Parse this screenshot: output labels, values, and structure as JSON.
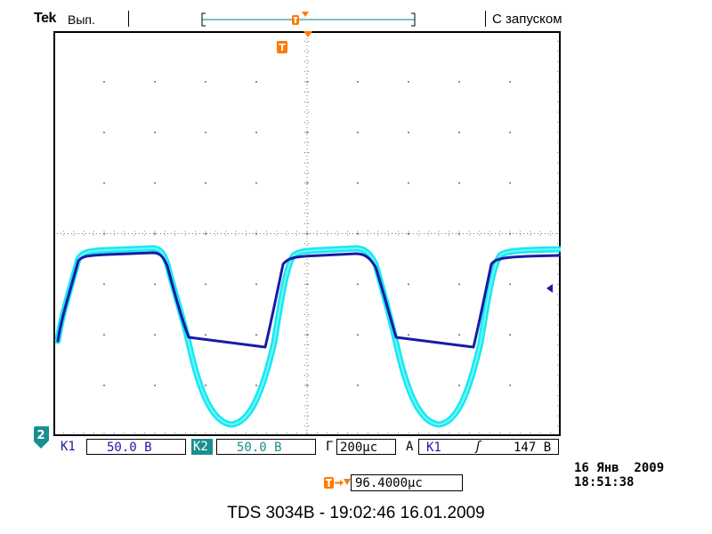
{
  "header": {
    "brand": "Tek",
    "run_state": "Вып.",
    "trigger_mode": "С запуском"
  },
  "markers": {
    "trigger_marker_label": "T",
    "channel2_marker_label": "2"
  },
  "channels": {
    "ch1_label": "К1",
    "ch1_scale": "50.0 В",
    "ch2_label": "К2",
    "ch2_scale": "50.0 В",
    "timebase_label": "Г",
    "timebase_value": "200µс",
    "trigger_source_prefix": "А",
    "trigger_source": "К1",
    "trigger_slope_symbol": "ʃ",
    "trigger_level": "147 В"
  },
  "horizontal_position": {
    "value": "96.4000µс"
  },
  "datetime": {
    "date": "16 Янв  2009",
    "time": "18:51:38"
  },
  "caption": "TDS 3034B - 19:02:46   16.01.2009",
  "colors": {
    "ch1": "#00e5ee",
    "ch2": "#1a1aa6",
    "accent": "#ff7a00",
    "screen_border": "#000000"
  }
}
